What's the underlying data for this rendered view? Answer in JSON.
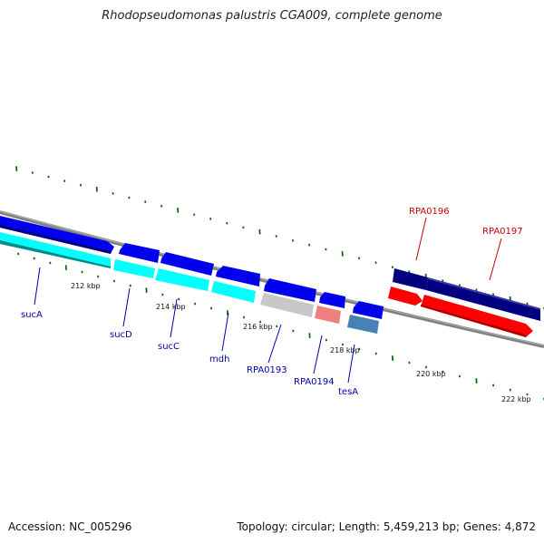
{
  "title": "Rhodopseudomonas palustris CGA009, complete genome",
  "footer": {
    "accession": "Accession: NC_005296",
    "summary": "Topology: circular; Length: 5,459,213 bp; Genes: 4,872"
  },
  "colors": {
    "forward_gene": "#0000ee",
    "reverse_cds": "#00ffff",
    "gray_gene": "#c8c8c8",
    "pink_gene": "#f08080",
    "steel_gene": "#4682b4",
    "navy_gene": "#000080",
    "red_gene": "#ff0000",
    "backbone": "#808080",
    "tick": "#006400",
    "label_blue": "#0000aa",
    "label_red": "#cc0000"
  },
  "ticks": {
    "labels": [
      "212 kbp",
      "214 kbp",
      "216 kbp",
      "218 kbp",
      "220 kbp",
      "222 kbp"
    ]
  },
  "genes": {
    "labels_blue": [
      "sucA",
      "sucD",
      "sucC",
      "mdh",
      "RPA0193",
      "RPA0194",
      "tesA"
    ],
    "labels_red": [
      "RPA0196",
      "RPA0197"
    ]
  }
}
